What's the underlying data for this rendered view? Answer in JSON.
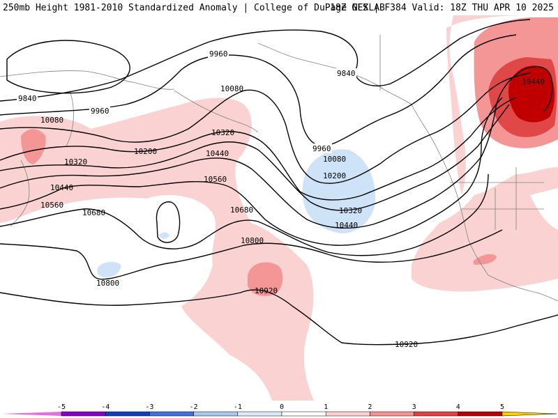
{
  "header": {
    "title_left": "250mb Height 1981-2010 Standardized Anomaly | College of DuPage NEXLAB",
    "title_right": "18Z GFS | F384 Valid: 18Z THU APR 10 2025"
  },
  "legend": {
    "ticks": [
      "-5",
      "-4",
      "-3",
      "-2",
      "-1",
      "0",
      "1",
      "2",
      "3",
      "4",
      "5"
    ],
    "colors": [
      "#e070e0",
      "#8a00c8",
      "#1040c0",
      "#4070e0",
      "#a8c8f0",
      "#dcebfa",
      "#ffffff",
      "#ffd0d0",
      "#f89090",
      "#e04040",
      "#b80000",
      "#ff9900",
      "#ffd000"
    ]
  },
  "contour_labels": {
    "c9840": "9840",
    "c9960": "9960",
    "c10080": "10080",
    "c10200": "10200",
    "c10320": "10320",
    "c10440": "10440",
    "c10560": "10560",
    "c10680": "10680",
    "c10800": "10800",
    "c10920": "10920"
  },
  "colors": {
    "pos1": "#fad2d2",
    "pos2": "#f49696",
    "pos3": "#e04848",
    "pos4": "#c00000",
    "neg1": "#cfe3f8",
    "contour": "#000000",
    "coast": "#808080"
  }
}
